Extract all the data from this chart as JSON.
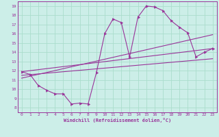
{
  "bg_color": "#cceee8",
  "line_color": "#993399",
  "grid_color": "#aaddcc",
  "xlabel": "Windchill (Refroidissement éolien,°C)",
  "yticks": [
    8,
    9,
    10,
    11,
    12,
    13,
    14,
    15,
    16,
    17,
    18,
    19
  ],
  "xticks": [
    0,
    1,
    2,
    3,
    4,
    5,
    6,
    7,
    8,
    9,
    10,
    11,
    12,
    13,
    14,
    15,
    16,
    17,
    18,
    19,
    20,
    21,
    22,
    23
  ],
  "xlim": [
    -0.5,
    23.5
  ],
  "ylim": [
    7.5,
    19.5
  ],
  "curve_x": [
    0,
    1,
    2,
    3,
    4,
    5,
    6,
    7,
    8,
    9,
    10,
    11,
    12,
    13,
    14,
    15,
    16,
    17,
    18,
    19,
    20,
    21,
    22,
    23
  ],
  "curve_y": [
    11.9,
    11.6,
    10.4,
    9.9,
    9.5,
    9.5,
    8.4,
    8.5,
    8.4,
    11.8,
    16.0,
    17.6,
    17.2,
    13.5,
    17.8,
    19.0,
    18.9,
    18.5,
    17.4,
    16.7,
    16.1,
    13.5,
    14.0,
    14.4
  ],
  "line1_x": [
    0,
    23
  ],
  "line1_y": [
    11.9,
    14.4
  ],
  "line2_x": [
    0,
    23
  ],
  "line2_y": [
    11.2,
    15.9
  ],
  "line3_x": [
    0,
    23
  ],
  "line3_y": [
    11.5,
    13.3
  ]
}
